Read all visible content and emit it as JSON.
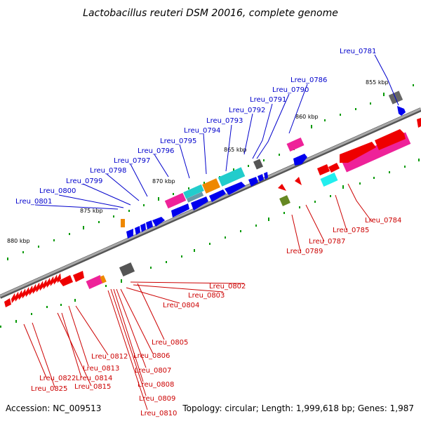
{
  "title": "Lactobacillus reuteri DSM 20016, complete genome",
  "footer": {
    "accession": "Accession: NC_009513",
    "topology": "Topology: circular; Length: 1,999,618 bp; Genes: 1,987"
  },
  "colors": {
    "backbone": "#808080",
    "forward_gene": "#0000ee",
    "reverse_gene": "#ee0000",
    "forward_label": "#0000cc",
    "reverse_label": "#cc0000",
    "tick_green": "#009900",
    "magenta": "#ee2299",
    "cyan": "#22cccc",
    "orange": "#ee8800",
    "gray": "#555555",
    "olive": "#668822"
  },
  "ticks": [
    "855 kbp",
    "860 kbp",
    "865 kbp",
    "870 kbp",
    "875 kbp",
    "880 kbp"
  ],
  "labels_forward": [
    "Lreu_0781",
    "Lreu_0786",
    "Lreu_0790",
    "Lreu_0791",
    "Lreu_0792",
    "Lreu_0793",
    "Lreu_0794",
    "Lreu_0795",
    "Lreu_0796",
    "Lreu_0797",
    "Lreu_0798",
    "Lreu_0799",
    "Lreu_0800",
    "Lreu_0801"
  ],
  "labels_reverse": [
    "Lreu_0784",
    "Lreu_0785",
    "Lreu_0787",
    "Lreu_0789",
    "Lreu_0802",
    "Lreu_0803",
    "Lreu_0804",
    "Lreu_0805",
    "Lreu_0806",
    "Lreu_0807",
    "Lreu_0808",
    "Lreu_0809",
    "Lreu_0810",
    "Lreu_0812",
    "Lreu_0813",
    "Lreu_0814",
    "Lreu_0815",
    "Lreu_0822",
    "Lreu_0825"
  ]
}
